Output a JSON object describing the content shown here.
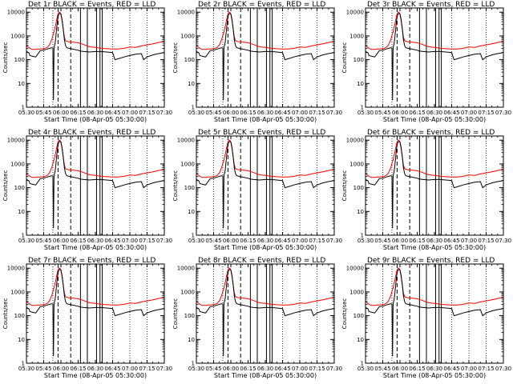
{
  "figure": {
    "panel_titles": [
      "Det 1r BLACK = Events, RED = LLD",
      "Det 2r BLACK = Events, RED = LLD",
      "Det 3r BLACK = Events, RED = LLD",
      "Det 4r BLACK = Events, RED = LLD",
      "Det 5r BLACK = Events, RED = LLD",
      "Det 6r BLACK = Events, RED = LLD",
      "Det 7r BLACK = Events, RED = LLD",
      "Det 8r BLACK = Events, RED = LLD",
      "Det 9r BLACK = Events, RED = LLD"
    ]
  },
  "colors": {
    "events": "#000000",
    "lld": "#ff0000",
    "axes": "#000000",
    "background": "#ffffff"
  },
  "chart_data": {
    "type": "line",
    "layout": "3x3 grid of identical panels",
    "xlabel": "Start Time (08-Apr-05 05:30:00)",
    "ylabel": "Counts/sec",
    "x_ticks": [
      "05:30",
      "05:45",
      "06:00",
      "06:15",
      "06:30",
      "06:45",
      "07:00",
      "07:15",
      "07:30"
    ],
    "x_tick_minutes": [
      0,
      15,
      30,
      45,
      60,
      75,
      90,
      105,
      120
    ],
    "xlim_minutes": [
      0,
      120
    ],
    "y_scale": "log",
    "y_ticks": [
      "1",
      "10",
      "100",
      "1000",
      "10000"
    ],
    "y_tick_values": [
      1,
      10,
      100,
      1000,
      10000
    ],
    "ylim": [
      1,
      15000
    ],
    "vertical_lines": {
      "dotted_minutes": [
        15,
        23,
        75,
        90,
        105
      ],
      "dashed_minutes": [
        27.5,
        38.5
      ],
      "solid_minutes": [
        47,
        53,
        61,
        64,
        66
      ]
    },
    "series": [
      {
        "name": "LLD",
        "color": "#ff0000",
        "x": [
          0,
          3,
          5,
          8,
          10,
          12,
          14,
          16,
          18,
          20,
          22,
          24,
          26,
          27,
          28,
          29,
          30,
          31,
          32,
          33,
          34,
          35,
          36,
          37,
          38,
          40,
          45,
          50,
          55,
          60,
          65,
          70,
          75,
          80,
          85,
          90,
          95,
          100,
          105,
          110,
          115,
          120
        ],
        "y": [
          400,
          300,
          270,
          270,
          280,
          280,
          290,
          300,
          330,
          420,
          700,
          1500,
          4000,
          7000,
          9500,
          10000,
          8000,
          4500,
          2000,
          900,
          650,
          600,
          580,
          570,
          560,
          550,
          520,
          430,
          350,
          330,
          300,
          290,
          280,
          280,
          300,
          340,
          330,
          380,
          420,
          470,
          530,
          600
        ]
      },
      {
        "name": "Events",
        "color": "#000000",
        "x": [
          0,
          2,
          3,
          5,
          8,
          12,
          15,
          16,
          18,
          20,
          22,
          23,
          23.5,
          24,
          25,
          26,
          27,
          28,
          29,
          30,
          31,
          32,
          33,
          34,
          35,
          37,
          40,
          45,
          47,
          50,
          55,
          60,
          65,
          70,
          75,
          77,
          80,
          85,
          90,
          95,
          100,
          102,
          103,
          105,
          110,
          115,
          120
        ],
        "y": [
          220,
          200,
          150,
          140,
          130,
          240,
          250,
          260,
          280,
          300,
          320,
          300,
          2,
          320,
          500,
          1500,
          4500,
          8000,
          9000,
          8500,
          5000,
          2000,
          700,
          400,
          320,
          300,
          280,
          250,
          230,
          220,
          210,
          220,
          220,
          210,
          200,
          100,
          110,
          130,
          150,
          170,
          180,
          100,
          110,
          130,
          160,
          180,
          200
        ]
      }
    ]
  }
}
